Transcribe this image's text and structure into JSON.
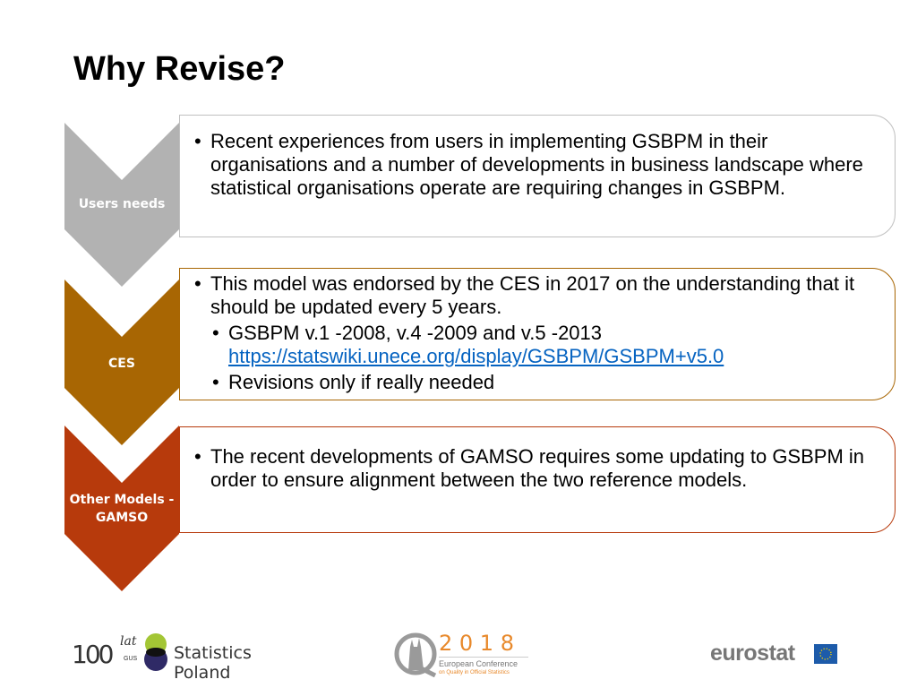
{
  "title": "Why Revise?",
  "colors": {
    "users_needs": "#B2B2B2",
    "ces": "#A86603",
    "other_models": "#B73A0C",
    "link": "#0563C1"
  },
  "sections": [
    {
      "label": "Users needs",
      "bullets": [
        "Recent experiences from users in implementing GSBPM in their organisations and a number of developments in business landscape where statistical organisations operate are requiring changes in GSBPM."
      ]
    },
    {
      "label": "CES",
      "bullets": [
        "This model was endorsed by the CES in 2017 on the understanding that it should be updated every 5 years."
      ],
      "sub_bullets": [
        "GSBPM v.1 -2008, v.4 -2009 and v.5 -2013",
        "Revisions only if really needed"
      ],
      "link": "https://statswiki.unece.org/display/GSBPM/GSBPM+v5.0"
    },
    {
      "label_line1": "Other Models -",
      "label_line2": "GAMSO",
      "bullets": [
        "The recent developments of GAMSO requires some updating to GSBPM in order to ensure alignment between the two reference models."
      ]
    }
  ],
  "footer": {
    "gus_logo": {
      "number": "100",
      "script": "lat",
      "small": "GUS",
      "name": "Statistics Poland"
    },
    "conference_logo": {
      "year": "2 0 1 8",
      "line1": "European Conference",
      "line2": "on Quality in Official Statistics"
    },
    "eurostat_logo": "eurostat"
  }
}
